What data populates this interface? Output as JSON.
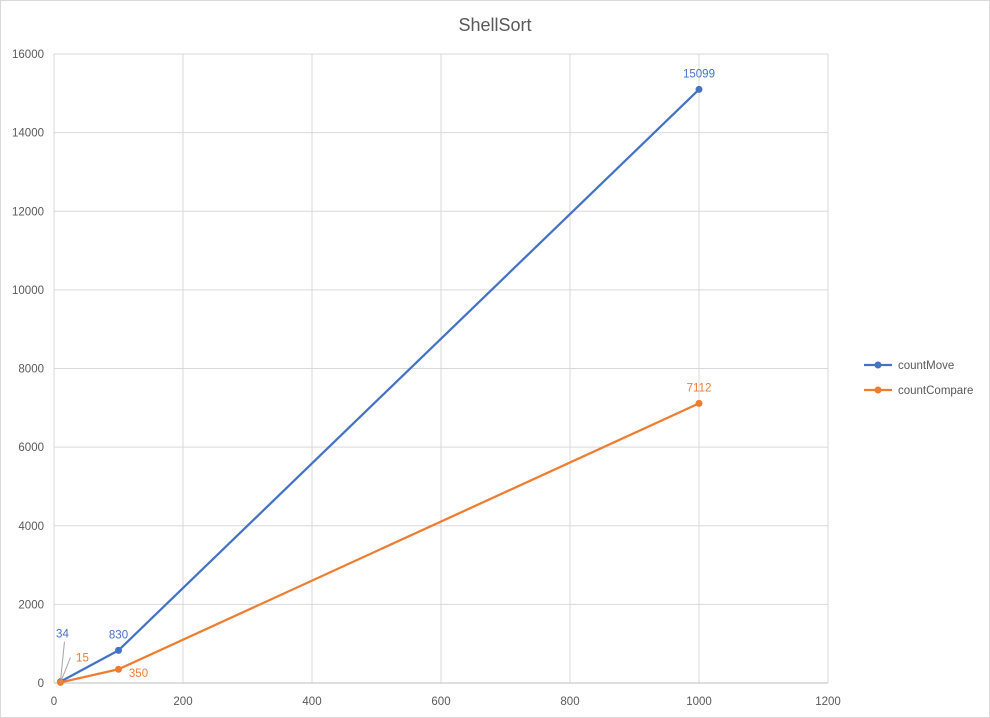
{
  "chart_data": {
    "type": "line",
    "title": "ShellSort",
    "xlabel": "",
    "ylabel": "",
    "xlim": [
      0,
      1200
    ],
    "ylim": [
      0,
      16000
    ],
    "x_ticks": [
      "0",
      "200",
      "400",
      "600",
      "800",
      "1000",
      "1200"
    ],
    "y_ticks": [
      "0",
      "2000",
      "4000",
      "6000",
      "8000",
      "10000",
      "12000",
      "14000",
      "16000"
    ],
    "grid": true,
    "legend_position": "right",
    "series": [
      {
        "name": "countMove",
        "color": "#4472C4",
        "x": [
          10,
          100,
          1000
        ],
        "values": [
          34,
          830,
          15099
        ],
        "labels": [
          "34",
          "830",
          "15099"
        ]
      },
      {
        "name": "countCompare",
        "color": "#ED7D31",
        "x": [
          10,
          100,
          1000
        ],
        "values": [
          15,
          350,
          7112
        ],
        "labels": [
          "15",
          "350",
          "7112"
        ]
      }
    ]
  }
}
